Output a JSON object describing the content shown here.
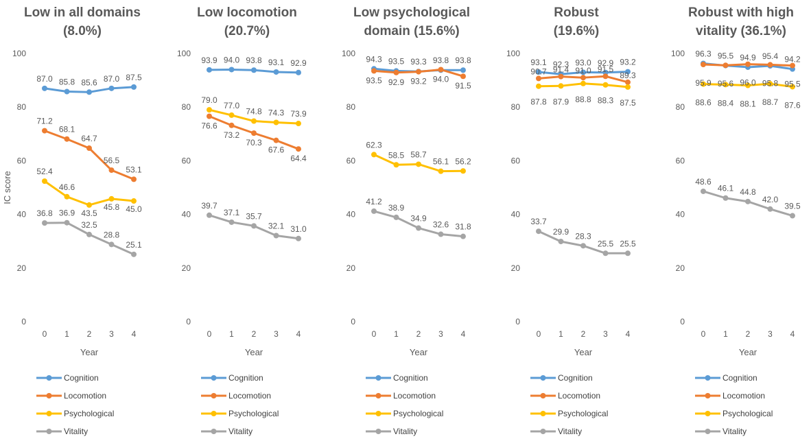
{
  "chart_data": [
    {
      "type": "line",
      "title_lines": [
        "Low in all domains",
        "(8.0%)"
      ],
      "xlabel": "Year",
      "ylabel": "IC score",
      "x": [
        0,
        1,
        2,
        3,
        4
      ],
      "ylim": [
        0,
        100
      ],
      "yticks": [
        0,
        20,
        40,
        60,
        80,
        100
      ],
      "legend": "bottom",
      "series": [
        {
          "name": "Cognition",
          "color": "#5B9BD5",
          "values": [
            87.0,
            85.8,
            85.6,
            87.0,
            87.5
          ],
          "labels": [
            "87.0",
            "85.8",
            "85.6",
            "87.0",
            "87.5"
          ]
        },
        {
          "name": "Locomotion",
          "color": "#ED7D31",
          "values": [
            71.2,
            68.1,
            64.7,
            56.5,
            53.1
          ],
          "labels": [
            "71.2",
            "68.1",
            "64.7",
            "56.5",
            "53.1"
          ]
        },
        {
          "name": "Psychological",
          "color": "#FFC000",
          "values": [
            52.4,
            46.6,
            43.5,
            45.8,
            45.0
          ],
          "labels": [
            "52.4",
            "46.6",
            "43.5",
            "45.8",
            "45.0"
          ]
        },
        {
          "name": "Vitality",
          "color": "#A5A5A5",
          "values": [
            36.8,
            36.9,
            32.5,
            28.8,
            25.1
          ],
          "labels": [
            "36.8",
            "36.9",
            "32.5",
            "28.8",
            "25.1"
          ]
        }
      ]
    },
    {
      "type": "line",
      "title_lines": [
        "Low locomotion",
        "(20.7%)"
      ],
      "xlabel": "Year",
      "x": [
        0,
        1,
        2,
        3,
        4
      ],
      "ylim": [
        0,
        100
      ],
      "yticks": [
        0,
        20,
        40,
        60,
        80,
        100
      ],
      "legend": "bottom",
      "series": [
        {
          "name": "Cognition",
          "color": "#5B9BD5",
          "values": [
            93.9,
            94.0,
            93.8,
            93.1,
            92.9
          ],
          "labels": [
            "93.9",
            "94.0",
            "93.8",
            "93.1",
            "92.9"
          ]
        },
        {
          "name": "Locomotion",
          "color": "#ED7D31",
          "values": [
            76.6,
            73.2,
            70.3,
            67.6,
            64.4
          ],
          "labels": [
            "76.6",
            "73.2",
            "70.3",
            "67.6",
            "64.4"
          ]
        },
        {
          "name": "Psychological",
          "color": "#FFC000",
          "values": [
            79.0,
            77.0,
            74.8,
            74.3,
            73.9
          ],
          "labels": [
            "79.0",
            "77.0",
            "74.8",
            "74.3",
            "73.9"
          ]
        },
        {
          "name": "Vitality",
          "color": "#A5A5A5",
          "values": [
            39.7,
            37.1,
            35.7,
            32.1,
            31.0
          ],
          "labels": [
            "39.7",
            "37.1",
            "35.7",
            "32.1",
            "31.0"
          ]
        }
      ]
    },
    {
      "type": "line",
      "title_lines": [
        "Low psychological",
        "domain (15.6%)"
      ],
      "xlabel": "Year",
      "x": [
        0,
        1,
        2,
        3,
        4
      ],
      "ylim": [
        0,
        100
      ],
      "yticks": [
        0,
        20,
        40,
        60,
        80,
        100
      ],
      "legend": "bottom",
      "series": [
        {
          "name": "Cognition",
          "color": "#5B9BD5",
          "values": [
            94.3,
            93.5,
            93.3,
            93.8,
            93.8
          ],
          "labels": [
            "94.3",
            "93.5",
            "93.3",
            "93.8",
            "93.8"
          ]
        },
        {
          "name": "Locomotion",
          "color": "#ED7D31",
          "values": [
            93.5,
            92.9,
            93.2,
            94.0,
            91.5
          ],
          "labels": [
            "93.5",
            "92.9",
            "93.2",
            "94.0",
            "91.5"
          ]
        },
        {
          "name": "Psychological",
          "color": "#FFC000",
          "values": [
            62.3,
            58.5,
            58.7,
            56.1,
            56.2
          ],
          "labels": [
            "62.3",
            "58.5",
            "58.7",
            "56.1",
            "56.2"
          ]
        },
        {
          "name": "Vitality",
          "color": "#A5A5A5",
          "values": [
            41.2,
            38.9,
            34.9,
            32.6,
            31.8
          ],
          "labels": [
            "41.2",
            "38.9",
            "34.9",
            "32.6",
            "31.8"
          ]
        }
      ]
    },
    {
      "type": "line",
      "title_lines": [
        "Robust",
        "(19.6%)"
      ],
      "xlabel": "Year",
      "x": [
        0,
        1,
        2,
        3,
        4
      ],
      "ylim": [
        0,
        100
      ],
      "yticks": [
        0,
        20,
        40,
        60,
        80,
        100
      ],
      "legend": "bottom",
      "series": [
        {
          "name": "Cognition",
          "color": "#5B9BD5",
          "values": [
            93.1,
            92.3,
            93.0,
            92.9,
            93.2
          ],
          "labels": [
            "93.1",
            "92.3",
            "93.0",
            "92.9",
            "93.2"
          ]
        },
        {
          "name": "Locomotion",
          "color": "#ED7D31",
          "values": [
            90.7,
            91.4,
            91.0,
            91.5,
            89.3
          ],
          "labels": [
            "90.7",
            "91.4",
            "91.0",
            "91.5",
            "89.3"
          ]
        },
        {
          "name": "Psychological",
          "color": "#FFC000",
          "values": [
            87.8,
            87.9,
            88.8,
            88.3,
            87.5
          ],
          "labels": [
            "87.8",
            "87.9",
            "88.8",
            "88.3",
            "87.5"
          ]
        },
        {
          "name": "Vitality",
          "color": "#A5A5A5",
          "values": [
            33.7,
            29.9,
            28.3,
            25.5,
            25.5
          ],
          "labels": [
            "33.7",
            "29.9",
            "28.3",
            "25.5",
            "25.5"
          ]
        }
      ]
    },
    {
      "type": "line",
      "title_lines": [
        "Robust with high",
        "vitality (36.1%)"
      ],
      "xlabel": "Year",
      "x": [
        0,
        1,
        2,
        3,
        4
      ],
      "ylim": [
        0,
        100
      ],
      "yticks": [
        0,
        20,
        40,
        60,
        80,
        100
      ],
      "legend": "bottom",
      "series": [
        {
          "name": "Cognition",
          "color": "#5B9BD5",
          "values": [
            96.3,
            95.5,
            94.9,
            95.4,
            94.2
          ],
          "labels": [
            "96.3",
            "95.5",
            "94.9",
            "95.4",
            "94.2"
          ]
        },
        {
          "name": "Locomotion",
          "color": "#ED7D31",
          "values": [
            95.9,
            95.6,
            96.0,
            95.8,
            95.5
          ],
          "labels": [
            "95.9",
            "95.6",
            "96.0",
            "95.8",
            "95.5"
          ]
        },
        {
          "name": "Psychological",
          "color": "#FFC000",
          "values": [
            88.6,
            88.4,
            88.1,
            88.7,
            87.6
          ],
          "labels": [
            "88.6",
            "88.4",
            "88.1",
            "88.7",
            "87.6"
          ]
        },
        {
          "name": "Vitality",
          "color": "#A5A5A5",
          "values": [
            48.6,
            46.1,
            44.8,
            42.0,
            39.5
          ],
          "labels": [
            "48.6",
            "46.1",
            "44.8",
            "42.0",
            "39.5"
          ]
        }
      ]
    }
  ]
}
